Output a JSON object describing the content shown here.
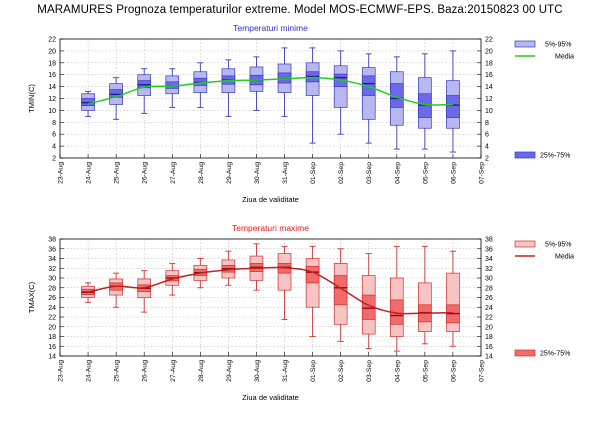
{
  "title": "MARAMURES  Prognoza temperaturilor extreme.  Model MOS-ECMWF-EPS. Baza:20150823 00 UTC",
  "colors": {
    "min_box_light": "#b8b8f0",
    "min_box_dark": "#6a6ae8",
    "min_edge": "#3838c0",
    "min_median": "#20208a",
    "min_mean": "#22cc22",
    "min_title": "#3030c0",
    "max_box_light": "#f7c4c4",
    "max_box_dark": "#f26a6a",
    "max_edge": "#d03030",
    "max_median": "#8a1010",
    "max_mean": "#c02020",
    "max_title": "#e02020"
  },
  "chart_data": [
    {
      "type": "box",
      "title": "Temperaturi minime",
      "xlabel": "Ziua de validitate",
      "ylabel": "TMIN(C)",
      "ylim": [
        2,
        22
      ],
      "yticks": [
        2,
        4,
        6,
        8,
        10,
        12,
        14,
        16,
        18,
        20,
        22
      ],
      "x_ticks": [
        "23-Aug",
        "24-Aug",
        "25-Aug",
        "26-Aug",
        "27-Aug",
        "28-Aug",
        "29-Aug",
        "30-Aug",
        "31-Aug",
        "01-Sep",
        "02-Sep",
        "03-Sep",
        "04-Sep",
        "05-Sep",
        "06-Sep",
        "07-Sep"
      ],
      "grid": true,
      "legend": [
        {
          "label": "5%-95%",
          "kind": "box_light"
        },
        {
          "label": "Media",
          "kind": "line"
        },
        {
          "label": "25%-75%",
          "kind": "box_dark"
        }
      ],
      "days": [
        {
          "p_low": 9.0,
          "p5": 10.0,
          "p25": 10.8,
          "median": 11.3,
          "p75": 12.0,
          "p95": 12.8,
          "p_high": 13.2
        },
        {
          "p_low": 8.5,
          "p5": 11.0,
          "p25": 12.2,
          "median": 12.7,
          "p75": 13.5,
          "p95": 14.5,
          "p_high": 15.5
        },
        {
          "p_low": 9.5,
          "p5": 12.5,
          "p25": 13.8,
          "median": 14.3,
          "p75": 15.0,
          "p95": 16.0,
          "p_high": 17.0
        },
        {
          "p_low": 10.5,
          "p5": 12.8,
          "p25": 13.7,
          "median": 14.1,
          "p75": 14.8,
          "p95": 15.8,
          "p_high": 17.0
        },
        {
          "p_low": 10.5,
          "p5": 13.0,
          "p25": 14.2,
          "median": 14.7,
          "p75": 15.4,
          "p95": 16.5,
          "p_high": 18.0
        },
        {
          "p_low": 9.0,
          "p5": 13.0,
          "p25": 14.4,
          "median": 15.1,
          "p75": 15.8,
          "p95": 17.0,
          "p_high": 18.5
        },
        {
          "p_low": 10.0,
          "p5": 13.2,
          "p25": 14.3,
          "median": 15.1,
          "p75": 15.9,
          "p95": 17.3,
          "p_high": 19.0
        },
        {
          "p_low": 9.0,
          "p5": 13.0,
          "p25": 14.6,
          "median": 15.3,
          "p75": 16.3,
          "p95": 17.8,
          "p_high": 20.5
        },
        {
          "p_low": 4.5,
          "p5": 12.5,
          "p25": 14.8,
          "median": 15.7,
          "p75": 16.5,
          "p95": 18.0,
          "p_high": 20.5
        },
        {
          "p_low": 6.0,
          "p5": 10.5,
          "p25": 14.0,
          "median": 15.5,
          "p75": 16.1,
          "p95": 17.5,
          "p_high": 20.0
        },
        {
          "p_low": 4.5,
          "p5": 8.5,
          "p25": 12.5,
          "median": 14.5,
          "p75": 15.8,
          "p95": 17.2,
          "p_high": 19.5
        },
        {
          "p_low": 3.5,
          "p5": 7.5,
          "p25": 10.5,
          "median": 12.0,
          "p75": 14.5,
          "p95": 16.5,
          "p_high": 19.0
        },
        {
          "p_low": 3.5,
          "p5": 7.0,
          "p25": 8.8,
          "median": 10.9,
          "p75": 12.8,
          "p95": 15.5,
          "p_high": 19.5
        },
        {
          "p_low": 3.0,
          "p5": 7.0,
          "p25": 8.8,
          "median": 10.9,
          "p75": 12.5,
          "p95": 15.0,
          "p_high": 20.0
        }
      ],
      "mean": [
        11.1,
        12.3,
        13.9,
        14.1,
        14.6,
        15.0,
        15.1,
        15.3,
        15.5,
        15.1,
        14.0,
        12.2,
        11.0,
        11.0
      ]
    },
    {
      "type": "box",
      "title": "Temperaturi maxime",
      "xlabel": "Ziua de validitate",
      "ylabel": "TMAX(C)",
      "ylim": [
        14,
        38
      ],
      "yticks": [
        14,
        16,
        18,
        20,
        22,
        24,
        26,
        28,
        30,
        32,
        34,
        36,
        38
      ],
      "x_ticks": [
        "23-Aug",
        "24-Aug",
        "25-Aug",
        "26-Aug",
        "27-Aug",
        "28-Aug",
        "29-Aug",
        "30-Aug",
        "31-Aug",
        "01-Sep",
        "02-Sep",
        "03-Sep",
        "04-Sep",
        "05-Sep",
        "06-Sep",
        "07-Sep"
      ],
      "grid": true,
      "legend": [
        {
          "label": "5%-95%",
          "kind": "box_light"
        },
        {
          "label": "Media",
          "kind": "line"
        },
        {
          "label": "25%-75%",
          "kind": "box_dark"
        }
      ],
      "days": [
        {
          "p_low": 25.0,
          "p5": 26.0,
          "p25": 26.6,
          "median": 27.1,
          "p75": 27.7,
          "p95": 28.3,
          "p_high": 29.0
        },
        {
          "p_low": 24.0,
          "p5": 26.5,
          "p25": 27.5,
          "median": 28.3,
          "p75": 29.0,
          "p95": 29.8,
          "p_high": 31.0
        },
        {
          "p_low": 23.0,
          "p5": 26.0,
          "p25": 27.2,
          "median": 27.9,
          "p75": 28.6,
          "p95": 29.8,
          "p_high": 31.5
        },
        {
          "p_low": 26.5,
          "p5": 28.5,
          "p25": 29.4,
          "median": 30.0,
          "p75": 30.5,
          "p95": 31.5,
          "p_high": 33.0
        },
        {
          "p_low": 28.0,
          "p5": 29.5,
          "p25": 30.5,
          "median": 31.1,
          "p75": 31.8,
          "p95": 32.6,
          "p_high": 34.0
        },
        {
          "p_low": 28.5,
          "p5": 30.0,
          "p25": 31.2,
          "median": 31.9,
          "p75": 32.6,
          "p95": 33.7,
          "p_high": 35.5
        },
        {
          "p_low": 27.5,
          "p5": 29.5,
          "p25": 31.3,
          "median": 32.2,
          "p75": 33.0,
          "p95": 34.5,
          "p_high": 37.0
        },
        {
          "p_low": 21.5,
          "p5": 27.5,
          "p25": 31.0,
          "median": 32.2,
          "p75": 33.0,
          "p95": 35.0,
          "p_high": 36.5
        },
        {
          "p_low": 18.0,
          "p5": 24.0,
          "p25": 29.0,
          "median": 31.2,
          "p75": 32.4,
          "p95": 34.0,
          "p_high": 36.5
        },
        {
          "p_low": 17.0,
          "p5": 20.5,
          "p25": 24.5,
          "median": 28.0,
          "p75": 30.5,
          "p95": 33.0,
          "p_high": 36.0
        },
        {
          "p_low": 15.5,
          "p5": 18.5,
          "p25": 21.5,
          "median": 23.8,
          "p75": 26.5,
          "p95": 30.5,
          "p_high": 35.0
        },
        {
          "p_low": 15.0,
          "p5": 18.0,
          "p25": 20.5,
          "median": 22.3,
          "p75": 25.5,
          "p95": 30.0,
          "p_high": 36.5
        },
        {
          "p_low": 16.5,
          "p5": 19.0,
          "p25": 21.0,
          "median": 22.9,
          "p75": 24.5,
          "p95": 29.0,
          "p_high": 36.5
        },
        {
          "p_low": 16.0,
          "p5": 19.0,
          "p25": 20.8,
          "median": 22.7,
          "p75": 24.5,
          "p95": 31.0,
          "p_high": 35.5
        }
      ],
      "mean": [
        27.1,
        28.3,
        28.0,
        29.8,
        31.0,
        31.7,
        32.0,
        32.1,
        31.2,
        27.9,
        24.4,
        22.8,
        22.8,
        22.9
      ]
    }
  ]
}
